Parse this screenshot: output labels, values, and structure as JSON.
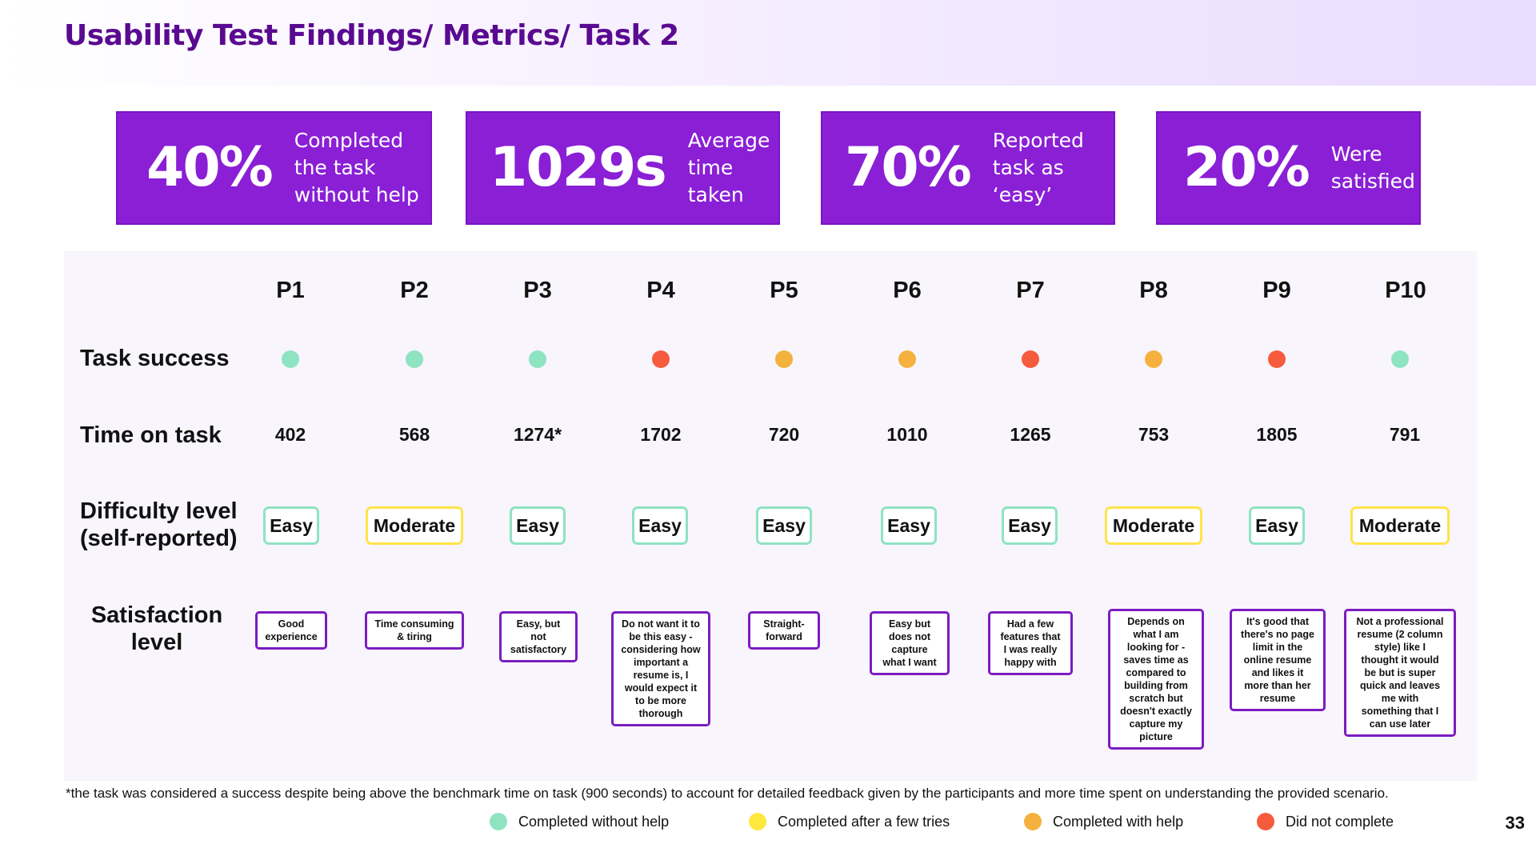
{
  "title": "Usability Test Findings/ Metrics/ Task 2",
  "metrics": [
    {
      "value": "40%",
      "label": "Completed\nthe task\nwithout help"
    },
    {
      "value": "1029s",
      "label": "Average\ntime taken"
    },
    {
      "value": "70%",
      "label": "Reported\ntask as ‘easy’"
    },
    {
      "value": "20%",
      "label": "Were\nsatisfied"
    }
  ],
  "row_labels": {
    "task_success": "Task success",
    "time_on_task": "Time on task",
    "difficulty_1": "Difficulty level",
    "difficulty_2": "(self-reported)",
    "satisfaction_1": "Satisfaction",
    "satisfaction_2": "level"
  },
  "participants": [
    {
      "id": "P1",
      "success": "completed-without-help",
      "time": "402",
      "difficulty": "Easy",
      "satisfaction": "Good\nexperience"
    },
    {
      "id": "P2",
      "success": "completed-without-help",
      "time": "568",
      "difficulty": "Moderate",
      "satisfaction": "Time consuming\n& tiring"
    },
    {
      "id": "P3",
      "success": "completed-without-help",
      "time": "1274*",
      "difficulty": "Easy",
      "satisfaction": "Easy, but\nnot\nsatisfactory"
    },
    {
      "id": "P4",
      "success": "did-not-complete",
      "time": "1702",
      "difficulty": "Easy",
      "satisfaction": "Do not want it to\nbe this easy -\nconsidering how\nimportant a\nresume is, I\nwould expect it\nto be more\nthorough"
    },
    {
      "id": "P5",
      "success": "completed-with-help",
      "time": "720",
      "difficulty": "Easy",
      "satisfaction": "Straight-\nforward"
    },
    {
      "id": "P6",
      "success": "completed-with-help",
      "time": "1010",
      "difficulty": "Easy",
      "satisfaction": "Easy but\ndoes not\ncapture\nwhat I want"
    },
    {
      "id": "P7",
      "success": "did-not-complete",
      "time": "1265",
      "difficulty": "Easy",
      "satisfaction": "Had a few\nfeatures that\nI was really\nhappy with"
    },
    {
      "id": "P8",
      "success": "completed-with-help",
      "time": "753",
      "difficulty": "Moderate",
      "satisfaction": "Depends on\nwhat I am\nlooking for -\nsaves time as\ncompared to\nbuilding from\nscratch but\ndoesn't exactly\ncapture my\npicture"
    },
    {
      "id": "P9",
      "success": "did-not-complete",
      "time": "1805",
      "difficulty": "Easy",
      "satisfaction": "It's good that\nthere's no page\nlimit in the\nonline resume\nand likes it\nmore than her\nresume"
    },
    {
      "id": "P10",
      "success": "completed-without-help",
      "time": "791",
      "difficulty": "Moderate",
      "satisfaction": "Not a professional\nresume (2 column\nstyle) like I\nthought it would\nbe but  is super\nquick and leaves\nme with\nsomething that I\ncan use later"
    }
  ],
  "status_colors": {
    "completed-without-help": "#8ee3c1",
    "completed-after-a-few-tries": "#ffe83d",
    "completed-with-help": "#f5b13d",
    "did-not-complete": "#f75b3d"
  },
  "footnote": "*the task was considered a success despite being above the benchmark time on task (900 seconds) to account for detailed feedback given by the participants and more time spent on understanding the provided scenario.",
  "legend": [
    {
      "key": "completed-without-help",
      "label": "Completed without help"
    },
    {
      "key": "completed-after-a-few-tries",
      "label": "Completed after a few tries"
    },
    {
      "key": "completed-with-help",
      "label": "Completed with help"
    },
    {
      "key": "did-not-complete",
      "label": "Did not complete"
    }
  ],
  "page_number": "33"
}
